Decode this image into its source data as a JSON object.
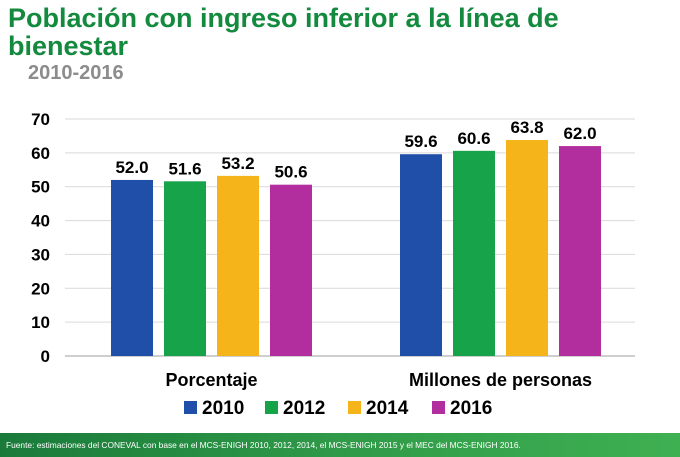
{
  "header": {
    "title": "Población con ingreso inferior a la línea de bienestar",
    "subtitle": "2010-2016"
  },
  "chart_data": {
    "type": "bar",
    "categories": [
      "Porcentaje",
      "Millones de personas"
    ],
    "series": [
      {
        "name": "2010",
        "values": [
          52.0,
          59.6
        ],
        "labels": [
          "52.0",
          "59.6"
        ],
        "color": "#1f4fa8"
      },
      {
        "name": "2012",
        "values": [
          51.6,
          60.6
        ],
        "labels": [
          "51.6",
          "60.6"
        ],
        "color": "#17a34a"
      },
      {
        "name": "2014",
        "values": [
          53.2,
          63.8
        ],
        "labels": [
          "53.2",
          "63.8"
        ],
        "color": "#f6b41b"
      },
      {
        "name": "2016",
        "values": [
          50.6,
          62.0
        ],
        "labels": [
          "50.6",
          "62.0"
        ],
        "color": "#b22d9e"
      }
    ],
    "ylim": [
      0,
      70
    ],
    "yticks": [
      0,
      10,
      20,
      30,
      40,
      50,
      60,
      70
    ],
    "grid": true,
    "legend": "bottom"
  },
  "footer": {
    "source": "Fuente: estimaciones del CONEVAL con base en el MCS-ENIGH 2010, 2012, 2014, el MCS-ENIGH 2015 y el MEC del MCS-ENIGH 2016."
  }
}
